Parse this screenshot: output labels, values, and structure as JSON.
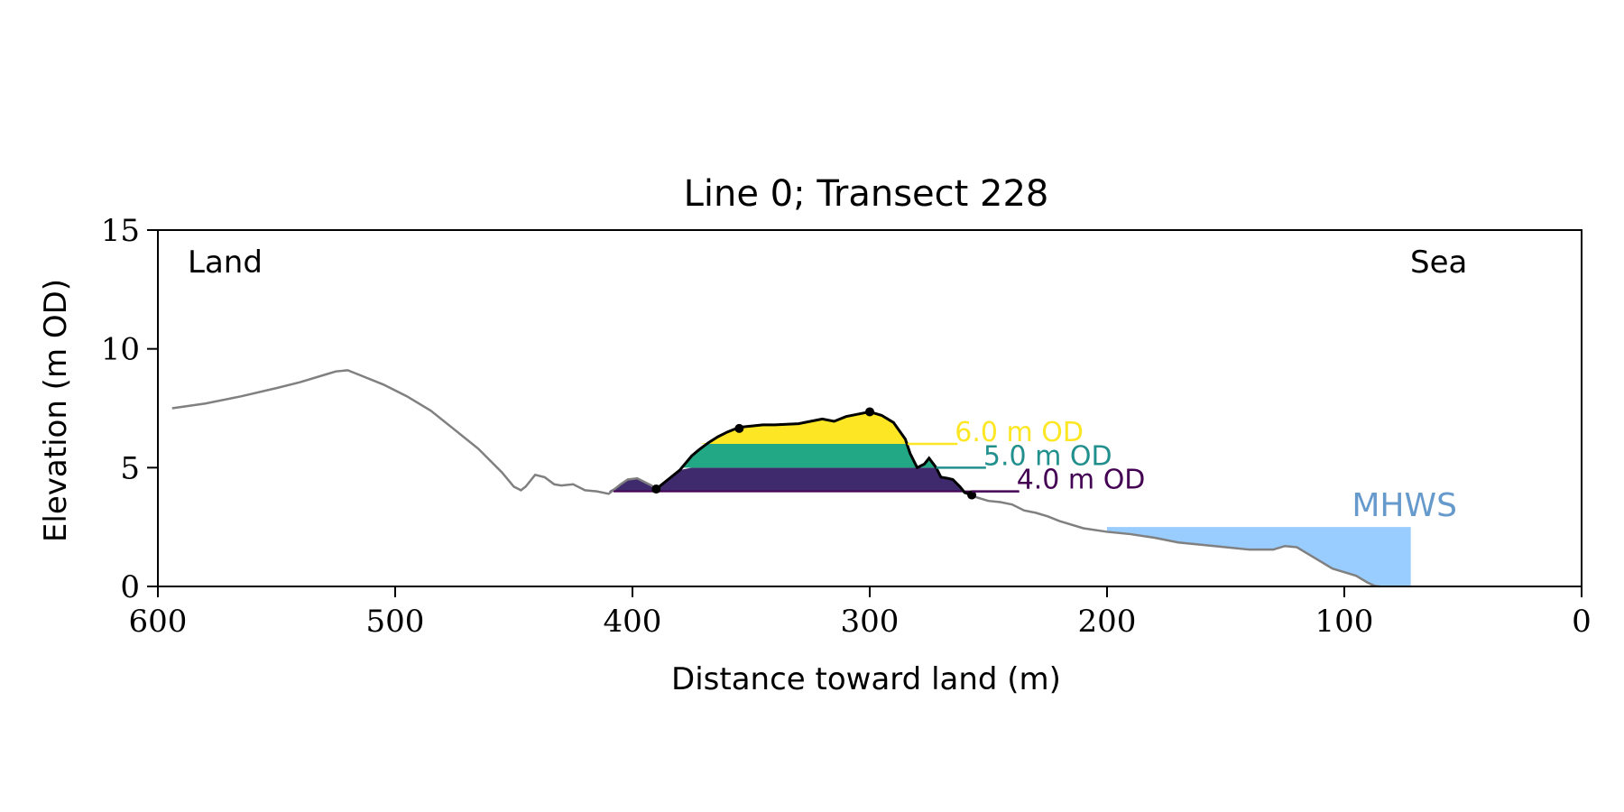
{
  "chart_data": {
    "type": "area",
    "title": "Line 0; Transect 228",
    "xlabel": "Distance toward land (m)",
    "ylabel": "Elevation (m OD)",
    "xlim": [
      600,
      0
    ],
    "ylim": [
      0,
      15
    ],
    "x_ticks": [
      600,
      500,
      400,
      300,
      200,
      100,
      0
    ],
    "y_ticks": [
      0,
      5,
      10,
      15
    ],
    "grid": false,
    "corner_labels": {
      "left": "Land",
      "right": "Sea"
    },
    "colors": {
      "profile": "#808080",
      "dune_outline": "#000000",
      "level_4": "#440154",
      "level_5": "#21908d",
      "level_6": "#fde725",
      "fill_4": "#3f2a6d",
      "fill_5": "#22a884",
      "fill_6": "#fde725",
      "mhws": "#99ccff",
      "mhws_text": "#6699cc"
    },
    "profile": {
      "x": [
        594,
        580,
        565,
        550,
        540,
        530,
        525,
        520,
        515,
        505,
        495,
        485,
        475,
        465,
        455,
        450,
        447,
        445,
        441,
        437,
        433,
        430,
        425,
        420,
        415,
        410,
        405,
        402,
        398,
        395,
        392,
        390,
        385,
        380,
        375,
        372,
        368,
        364,
        360,
        355,
        350,
        345,
        340,
        330,
        320,
        315,
        310,
        305,
        300,
        295,
        290,
        285,
        283,
        280,
        277,
        275,
        272,
        270,
        267,
        265,
        262,
        260,
        257,
        255,
        250,
        245,
        240,
        235,
        230,
        225,
        220,
        210,
        200,
        190,
        180,
        170,
        160,
        150,
        140,
        130,
        125,
        120,
        115,
        110,
        105,
        100,
        95,
        90,
        87,
        85
      ],
      "y": [
        7.5,
        7.7,
        8.0,
        8.35,
        8.6,
        8.9,
        9.05,
        9.1,
        8.9,
        8.5,
        8.0,
        7.4,
        6.6,
        5.8,
        4.8,
        4.2,
        4.05,
        4.2,
        4.7,
        4.6,
        4.3,
        4.25,
        4.3,
        4.05,
        4.0,
        3.9,
        4.3,
        4.5,
        4.55,
        4.4,
        4.25,
        4.1,
        4.5,
        4.9,
        5.5,
        5.75,
        6.05,
        6.3,
        6.5,
        6.7,
        6.75,
        6.8,
        6.8,
        6.85,
        7.05,
        6.95,
        7.15,
        7.25,
        7.35,
        7.2,
        6.9,
        6.2,
        5.6,
        5.0,
        5.15,
        5.4,
        5.0,
        4.6,
        4.55,
        4.5,
        4.2,
        3.95,
        3.85,
        3.75,
        3.6,
        3.55,
        3.45,
        3.2,
        3.1,
        2.95,
        2.75,
        2.45,
        2.3,
        2.2,
        2.05,
        1.85,
        1.75,
        1.65,
        1.55,
        1.55,
        1.7,
        1.65,
        1.35,
        1.05,
        0.75,
        0.6,
        0.45,
        0.15,
        0.02,
        0
      ]
    },
    "dune": {
      "x": [
        390,
        385,
        380,
        375,
        372,
        368,
        364,
        360,
        355,
        350,
        345,
        340,
        330,
        320,
        315,
        310,
        305,
        300,
        295,
        290,
        285,
        283,
        280,
        277,
        275,
        272,
        270,
        267,
        265,
        262,
        260,
        257
      ],
      "y": [
        4.1,
        4.5,
        4.9,
        5.5,
        5.75,
        6.05,
        6.3,
        6.5,
        6.7,
        6.75,
        6.8,
        6.8,
        6.85,
        7.05,
        6.95,
        7.15,
        7.25,
        7.35,
        7.2,
        6.9,
        6.2,
        5.6,
        5.0,
        5.15,
        5.4,
        5.0,
        4.6,
        4.55,
        4.5,
        4.2,
        3.95,
        3.85
      ]
    },
    "dune_markers": [
      {
        "x": 390,
        "y": 4.1
      },
      {
        "x": 355,
        "y": 6.65
      },
      {
        "x": 300,
        "y": 7.35
      },
      {
        "x": 257,
        "y": 3.85
      }
    ],
    "levels": [
      {
        "value": 4.0,
        "label": "4.0 m OD",
        "line_x": [
          257,
          237
        ]
      },
      {
        "value": 5.0,
        "label": "5.0 m OD",
        "line_x": [
          272,
          251
        ]
      },
      {
        "value": 6.0,
        "label": "6.0 m OD",
        "line_x": [
          284,
          263
        ]
      }
    ],
    "mhws": {
      "label": "MHWS",
      "value": 2.5,
      "x_from": 200,
      "x_to": 72
    }
  }
}
